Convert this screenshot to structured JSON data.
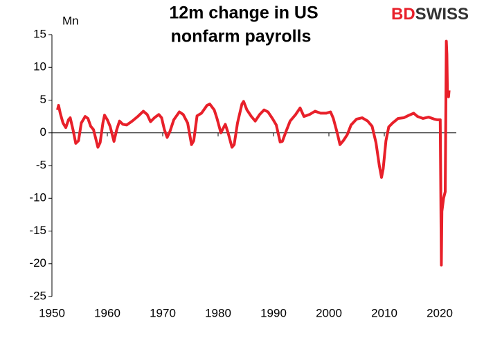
{
  "chart_data": {
    "type": "line",
    "title": [
      "12m change in US",
      "nonfarm payrolls"
    ],
    "y_label": "Mn",
    "logo": [
      "BD",
      "SWISS"
    ],
    "x": [
      1951.0,
      1951.2,
      1951.5,
      1952.0,
      1952.5,
      1953.0,
      1953.3,
      1953.8,
      1954.3,
      1954.8,
      1955.3,
      1956.0,
      1956.5,
      1957.0,
      1957.5,
      1958.3,
      1958.7,
      1959.2,
      1959.5,
      1960.0,
      1960.5,
      1961.2,
      1961.7,
      1962.2,
      1962.8,
      1963.5,
      1964.5,
      1965.5,
      1966.5,
      1967.2,
      1967.8,
      1968.5,
      1969.3,
      1969.8,
      1970.3,
      1970.8,
      1971.3,
      1972.0,
      1973.0,
      1973.7,
      1974.5,
      1975.2,
      1975.6,
      1976.2,
      1977.0,
      1978.0,
      1978.5,
      1979.3,
      1979.8,
      1980.5,
      1980.8,
      1981.3,
      1981.8,
      1982.5,
      1982.9,
      1983.5,
      1984.3,
      1984.6,
      1985.2,
      1986.0,
      1986.7,
      1987.5,
      1988.3,
      1989.0,
      1989.8,
      1990.5,
      1991.2,
      1991.6,
      1992.3,
      1993.0,
      1994.0,
      1994.8,
      1995.5,
      1996.5,
      1997.5,
      1998.5,
      1999.5,
      2000.3,
      2000.8,
      2001.5,
      2002.0,
      2002.6,
      2003.3,
      2004.0,
      2005.0,
      2006.0,
      2007.0,
      2007.8,
      2008.5,
      2009.1,
      2009.5,
      2009.8,
      2010.3,
      2010.8,
      2011.5,
      2012.5,
      2013.5,
      2014.5,
      2015.3,
      2016.0,
      2017.0,
      2018.0,
      2019.0,
      2019.5,
      2020.1,
      2020.3,
      2020.4,
      2020.7,
      2021.0,
      2021.2,
      2021.3,
      2021.4,
      2021.6,
      2021.7
    ],
    "series": [
      {
        "name": "12m change",
        "color": "#e8202a",
        "values": [
          3.5,
          4.2,
          3,
          1.5,
          0.8,
          2,
          2.3,
          0.5,
          -1.6,
          -1.2,
          1.5,
          2.5,
          2.2,
          1,
          0.5,
          -2.2,
          -1.5,
          1.5,
          2.7,
          2,
          1,
          -1.3,
          0.5,
          1.8,
          1.3,
          1.2,
          1.8,
          2.5,
          3.3,
          2.8,
          1.7,
          2.3,
          2.8,
          2.3,
          0.5,
          -0.7,
          0.2,
          2,
          3.2,
          2.8,
          1.5,
          -1.8,
          -1.2,
          2.6,
          3,
          4.2,
          4.4,
          3.5,
          2.2,
          0,
          0.5,
          1.3,
          0,
          -2.2,
          -1.8,
          1.5,
          4.4,
          4.8,
          3.5,
          2.5,
          1.8,
          2.8,
          3.5,
          3.2,
          2.2,
          1.2,
          -1.4,
          -1.3,
          0.3,
          1.8,
          2.8,
          3.8,
          2.5,
          2.8,
          3.3,
          3,
          3,
          3.2,
          2.2,
          0,
          -1.8,
          -1.2,
          -0.3,
          1.2,
          2.1,
          2.3,
          1.8,
          1,
          -1.5,
          -5,
          -6.8,
          -5.5,
          -1.2,
          0.9,
          1.5,
          2.2,
          2.3,
          2.7,
          3,
          2.5,
          2.2,
          2.4,
          2.1,
          2,
          2,
          -20.2,
          -12,
          -10,
          -9,
          14,
          12,
          6,
          5.5,
          6.5
        ]
      }
    ],
    "xlim": [
      1950,
      2023
    ],
    "xticks": [
      1950,
      1960,
      1970,
      1980,
      1990,
      2000,
      2010,
      2020
    ],
    "ylim": [
      -25,
      15
    ],
    "yticks": [
      -25,
      -20,
      -15,
      -10,
      -5,
      0,
      5,
      10,
      15
    ]
  }
}
